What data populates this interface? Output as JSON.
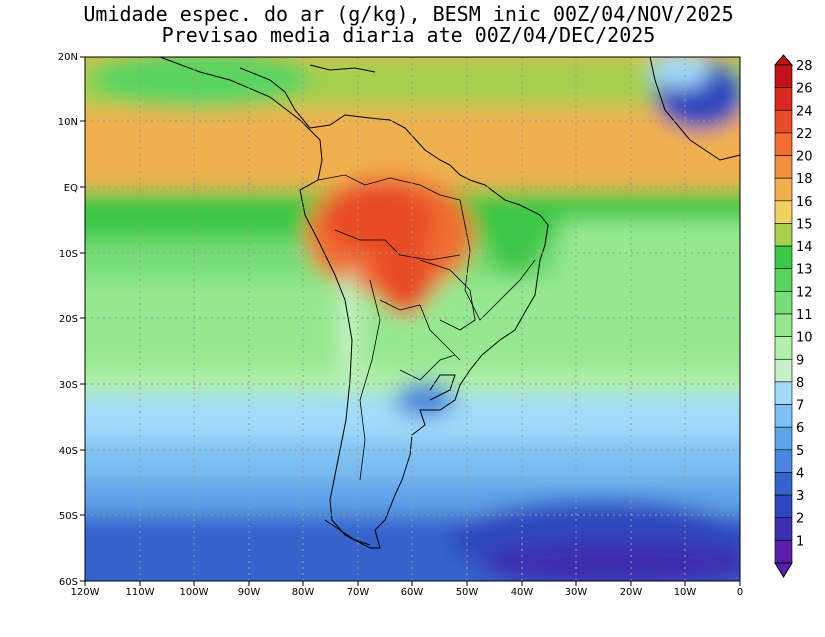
{
  "title": {
    "line1": "Umidade espec. do ar (g/kg), BESM inic 00Z/04/NOV/2025",
    "line2": "Previsao media diaria ate 00Z/04/DEC/2025"
  },
  "map": {
    "lat_labels": [
      "20N",
      "10N",
      "EQ",
      "10S",
      "20S",
      "30S",
      "40S",
      "50S",
      "60S"
    ],
    "lat_values": [
      20,
      10,
      0,
      -10,
      -20,
      -30,
      -40,
      -50,
      -60
    ],
    "lon_labels": [
      "120W",
      "110W",
      "100W",
      "90W",
      "80W",
      "70W",
      "60W",
      "50W",
      "40W",
      "30W",
      "20W",
      "10W",
      "0"
    ],
    "lon_values": [
      -120,
      -110,
      -100,
      -90,
      -80,
      -70,
      -60,
      -50,
      -40,
      -30,
      -20,
      -10,
      0
    ],
    "grid": "dotted",
    "field": "specific humidity (g/kg)"
  },
  "colorbar": {
    "levels": [
      "1",
      "2",
      "3",
      "4",
      "5",
      "6",
      "7",
      "8",
      "9",
      "10",
      "11",
      "12",
      "13",
      "14",
      "15",
      "16",
      "18",
      "20",
      "22",
      "24",
      "26",
      "28"
    ],
    "colors": [
      "#5a1fa8",
      "#3c2fb0",
      "#2f46be",
      "#3463cc",
      "#4a86dd",
      "#5ea3e8",
      "#7ec0f2",
      "#a2dafa",
      "#c8f0c8",
      "#b0f0a8",
      "#96e890",
      "#78de78",
      "#5ad460",
      "#3cc846",
      "#a6d050",
      "#f0d060",
      "#f0b050",
      "#f09040",
      "#f06e30",
      "#e84c28",
      "#d62a1e",
      "#c01418"
    ]
  }
}
